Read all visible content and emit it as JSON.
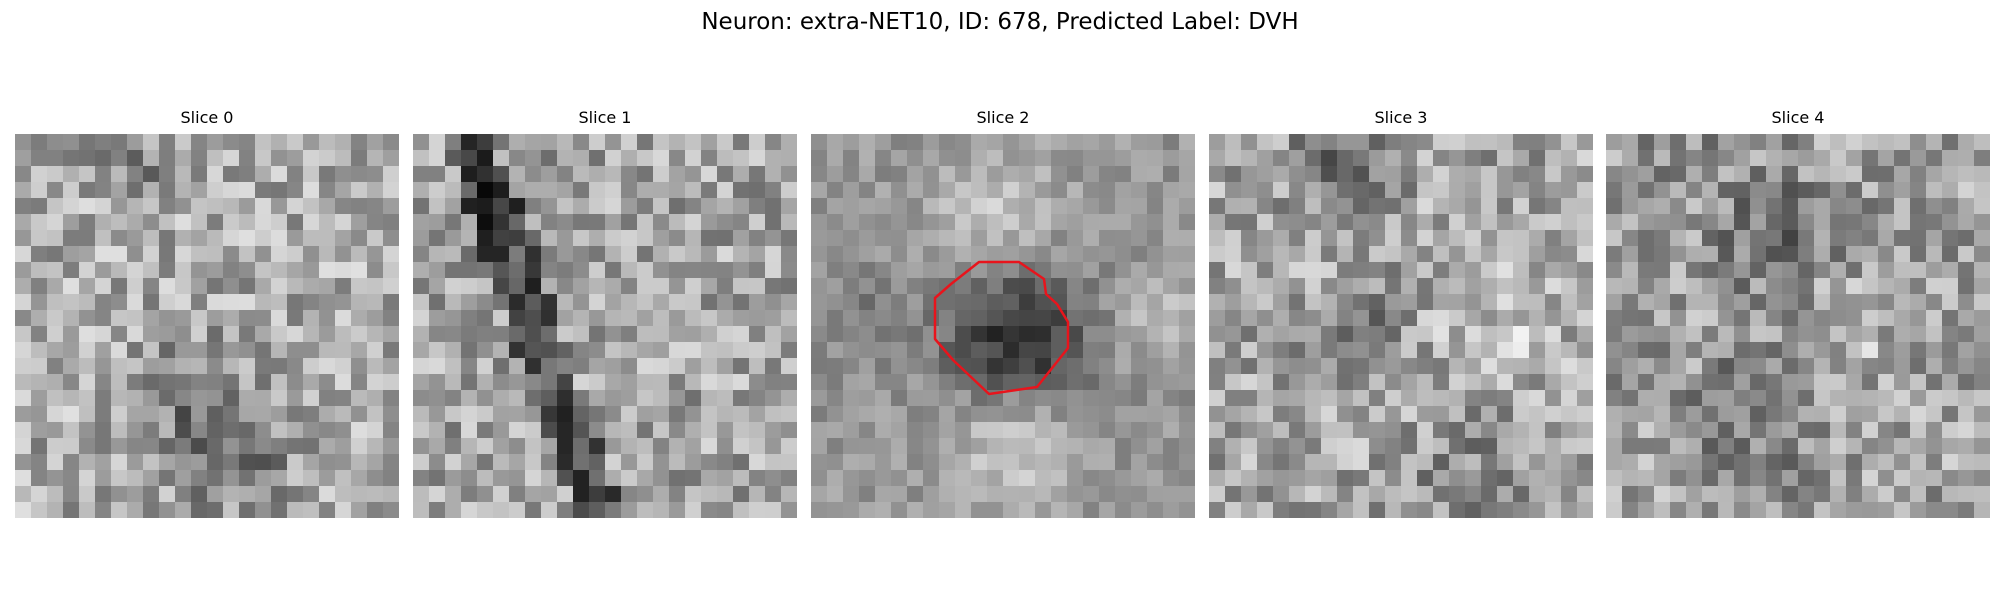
{
  "figure": {
    "title": "Neuron: extra-NET10, ID: 678, Predicted Label: DVH"
  },
  "slices": [
    {
      "title": "Slice 0"
    },
    {
      "title": "Slice 1"
    },
    {
      "title": "Slice 2",
      "has_roi_outline": true
    },
    {
      "title": "Slice 3"
    },
    {
      "title": "Slice 4"
    }
  ],
  "colors": {
    "roi_outline": "#e8141c",
    "colormap": "gray",
    "background": "#ffffff"
  }
}
